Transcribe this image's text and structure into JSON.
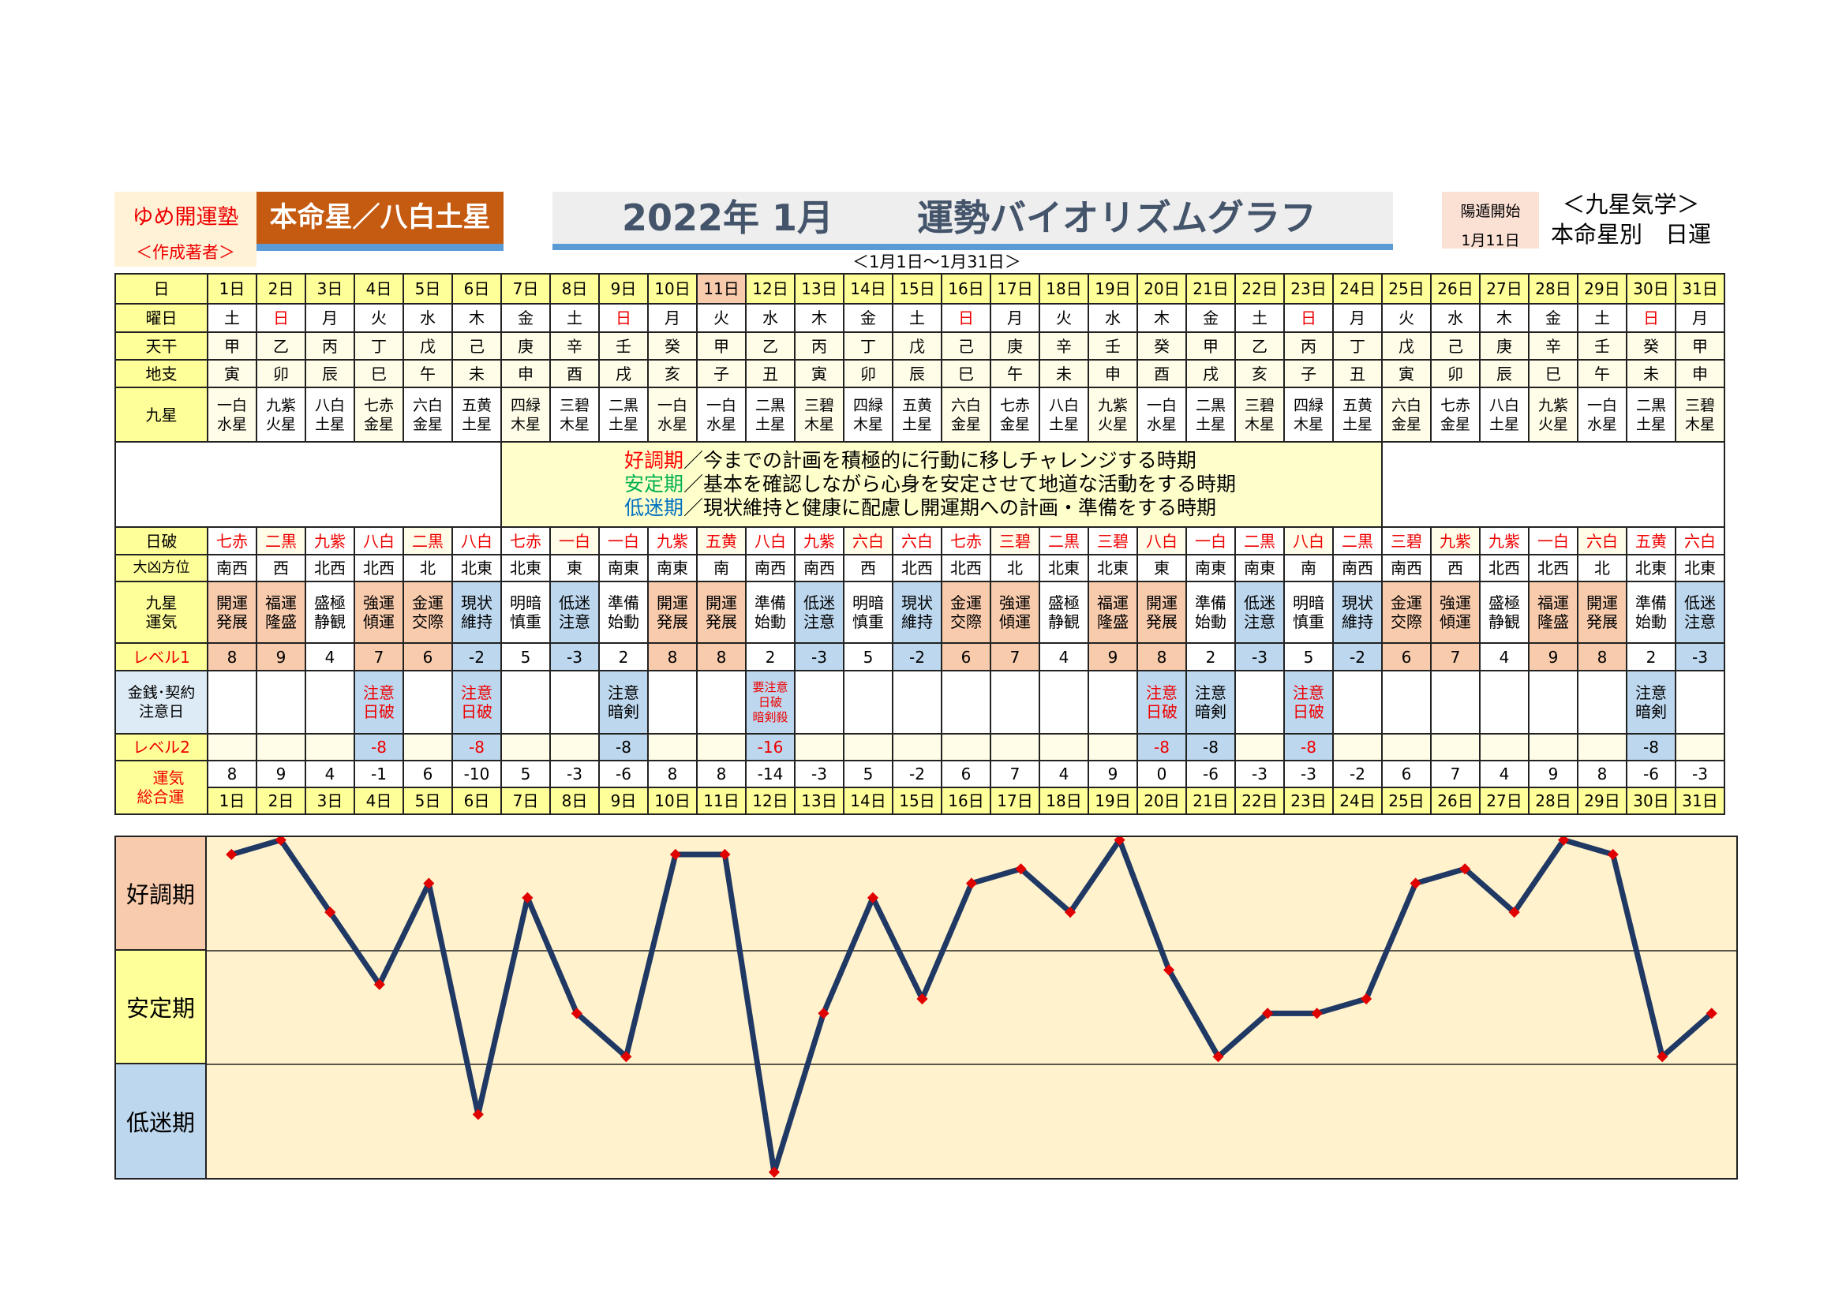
{
  "header": {
    "brand": "ゆめ開運塾",
    "brand_sub": "＜作成著者＞",
    "honmei": "本命星／八白土星",
    "title_year": "2022年 1月",
    "title_text": "運勢バイオリズムグラフ",
    "range": "＜1月1日～1月31日＞",
    "yoton_label": "陽遁開始",
    "yoton_date": "1月11日",
    "kigaku": "＜九星気学＞",
    "kigaku_sub": "本命星別　日運"
  },
  "labels": {
    "day": "日",
    "youbi": "曜日",
    "tenkan": "天干",
    "chishi": "地支",
    "kyusei": "九星",
    "nippa": "日破",
    "houi": "大凶方位",
    "unki": "九星運気",
    "level1": "レベル1",
    "kinsen": "金銭･契約注意日",
    "level2": "レベル2",
    "total": "運気総合運"
  },
  "legend": [
    {
      "term": "好調期",
      "text": "／今までの計画を積極的に行動に移しチャレンジする時期",
      "color": "#ff0000"
    },
    {
      "term": "安定期",
      "text": "／基本を確認しながら心身を安定させて地道な活動をする時期",
      "color": "#00b050"
    },
    {
      "term": "低迷期",
      "text": "／現状維持と健康に配慮し開運期への計画・準備をする時期",
      "color": "#0070c0"
    }
  ],
  "bands": [
    {
      "label": "好調期",
      "color": "#f8cbad"
    },
    {
      "label": "安定期",
      "color": "#ffff99"
    },
    {
      "label": "低迷期",
      "color": "#bdd7ee"
    }
  ],
  "highlight_day": 11,
  "days": [
    "1日",
    "2日",
    "3日",
    "4日",
    "5日",
    "6日",
    "7日",
    "8日",
    "9日",
    "10日",
    "11日",
    "12日",
    "13日",
    "14日",
    "15日",
    "16日",
    "17日",
    "18日",
    "19日",
    "20日",
    "21日",
    "22日",
    "23日",
    "24日",
    "25日",
    "26日",
    "27日",
    "28日",
    "29日",
    "30日",
    "31日"
  ],
  "youbi": [
    "土",
    "日",
    "月",
    "火",
    "水",
    "木",
    "金",
    "土",
    "日",
    "月",
    "火",
    "水",
    "木",
    "金",
    "土",
    "日",
    "月",
    "火",
    "水",
    "木",
    "金",
    "土",
    "日",
    "月",
    "火",
    "水",
    "木",
    "金",
    "土",
    "日",
    "月"
  ],
  "tenkan": [
    "甲",
    "乙",
    "丙",
    "丁",
    "戊",
    "己",
    "庚",
    "辛",
    "壬",
    "癸",
    "甲",
    "乙",
    "丙",
    "丁",
    "戊",
    "己",
    "庚",
    "辛",
    "壬",
    "癸",
    "甲",
    "乙",
    "丙",
    "丁",
    "戊",
    "己",
    "庚",
    "辛",
    "壬",
    "癸",
    "甲"
  ],
  "chishi": [
    "寅",
    "卯",
    "辰",
    "巳",
    "午",
    "未",
    "申",
    "酉",
    "戌",
    "亥",
    "子",
    "丑",
    "寅",
    "卯",
    "辰",
    "巳",
    "午",
    "未",
    "申",
    "酉",
    "戌",
    "亥",
    "子",
    "丑",
    "寅",
    "卯",
    "辰",
    "巳",
    "午",
    "未",
    "申"
  ],
  "kyusei": [
    "一白水星",
    "九紫火星",
    "八白土星",
    "七赤金星",
    "六白金星",
    "五黄土星",
    "四緑木星",
    "三碧木星",
    "二黒土星",
    "一白水星",
    "一白水星",
    "二黒土星",
    "三碧木星",
    "四緑木星",
    "五黄土星",
    "六白金星",
    "七赤金星",
    "八白土星",
    "九紫火星",
    "一白水星",
    "二黒土星",
    "三碧木星",
    "四緑木星",
    "五黄土星",
    "六白金星",
    "七赤金星",
    "八白土星",
    "九紫火星",
    "一白水星",
    "二黒土星",
    "三碧木星"
  ],
  "nippa": [
    "七赤",
    "二黒",
    "九紫",
    "八白",
    "二黒",
    "八白",
    "七赤",
    "一白",
    "一白",
    "九紫",
    "五黄",
    "八白",
    "九紫",
    "六白",
    "六白",
    "七赤",
    "三碧",
    "二黒",
    "三碧",
    "八白",
    "一白",
    "二黒",
    "八白",
    "二黒",
    "三碧",
    "九紫",
    "九紫",
    "一白",
    "六白",
    "五黄",
    "六白"
  ],
  "houi": [
    "南西",
    "西",
    "北西",
    "北西",
    "北",
    "北東",
    "北東",
    "東",
    "南東",
    "南東",
    "南",
    "南西",
    "南西",
    "西",
    "北西",
    "北西",
    "北",
    "北東",
    "北東",
    "東",
    "南東",
    "南東",
    "南",
    "南西",
    "南西",
    "西",
    "北西",
    "北西",
    "北",
    "北東",
    "北東"
  ],
  "unki": [
    "開運発展",
    "福運隆盛",
    "盛極静観",
    "強運傾運",
    "金運交際",
    "現状維持",
    "明暗慎重",
    "低迷注意",
    "準備始動",
    "開運発展",
    "開運発展",
    "準備始動",
    "低迷注意",
    "明暗慎重",
    "現状維持",
    "金運交際",
    "強運傾運",
    "盛極静観",
    "福運隆盛",
    "開運発展",
    "準備始動",
    "低迷注意",
    "明暗慎重",
    "現状維持",
    "金運交際",
    "強運傾運",
    "盛極静観",
    "福運隆盛",
    "開運発展",
    "準備始動",
    "低迷注意"
  ],
  "level1": [
    8,
    9,
    4,
    7,
    6,
    -2,
    5,
    -3,
    2,
    8,
    8,
    2,
    -3,
    5,
    -2,
    6,
    7,
    4,
    9,
    8,
    2,
    -3,
    5,
    -2,
    6,
    7,
    4,
    9,
    8,
    2,
    -3
  ],
  "kinsen": [
    null,
    null,
    null,
    {
      "lines": [
        "注意",
        "日破"
      ],
      "red": true
    },
    null,
    {
      "lines": [
        "注意",
        "日破"
      ],
      "red": true
    },
    null,
    null,
    {
      "lines": [
        "注意",
        "暗剣"
      ],
      "red": false
    },
    null,
    null,
    {
      "lines": [
        "要注意",
        "日破",
        "暗剣殺"
      ],
      "red": true
    },
    null,
    null,
    null,
    null,
    null,
    null,
    null,
    {
      "lines": [
        "注意",
        "日破"
      ],
      "red": true
    },
    {
      "lines": [
        "注意",
        "暗剣"
      ],
      "red": false
    },
    null,
    {
      "lines": [
        "注意",
        "日破"
      ],
      "red": true
    },
    null,
    null,
    null,
    null,
    null,
    null,
    {
      "lines": [
        "注意",
        "暗剣"
      ],
      "red": false
    },
    null
  ],
  "level2": [
    null,
    null,
    null,
    -8,
    null,
    -8,
    null,
    null,
    -8,
    null,
    null,
    -16,
    null,
    null,
    null,
    null,
    null,
    null,
    null,
    -8,
    -8,
    null,
    -8,
    null,
    null,
    null,
    null,
    null,
    null,
    -8,
    null
  ],
  "chart_data": {
    "type": "line",
    "x": [
      "1日",
      "2日",
      "3日",
      "4日",
      "5日",
      "6日",
      "7日",
      "8日",
      "9日",
      "10日",
      "11日",
      "12日",
      "13日",
      "14日",
      "15日",
      "16日",
      "17日",
      "18日",
      "19日",
      "20日",
      "21日",
      "22日",
      "23日",
      "24日",
      "25日",
      "26日",
      "27日",
      "28日",
      "29日",
      "30日",
      "31日"
    ],
    "values": [
      8,
      9,
      4,
      -1,
      6,
      -10,
      5,
      -3,
      -6,
      8,
      8,
      -14,
      -3,
      5,
      -2,
      6,
      7,
      4,
      9,
      0,
      -6,
      -3,
      -3,
      -2,
      6,
      7,
      4,
      9,
      8,
      -6,
      -3
    ],
    "ylim": [
      -14.4,
      9.2
    ],
    "line_color": "#1f3864",
    "marker_color": "#e00000",
    "grid": false
  }
}
